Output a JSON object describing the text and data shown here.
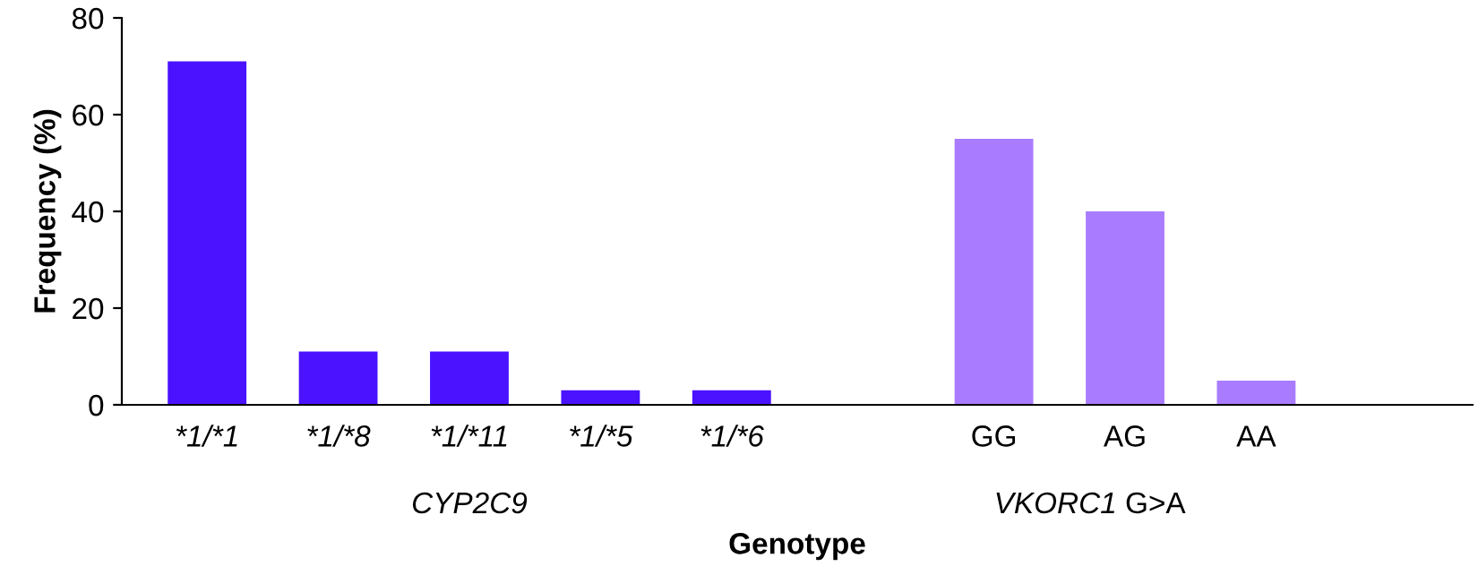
{
  "chart_data": {
    "type": "bar",
    "ylabel": "Frequency (%)",
    "xlabel": "Genotype",
    "categories": [
      "*1/*1",
      "*1/*8",
      "*1/*11",
      "*1/*5",
      "*1/*6",
      null,
      "GG",
      "AG",
      "AA",
      null
    ],
    "values": [
      71,
      11,
      11,
      3,
      3,
      null,
      55,
      40,
      5,
      null
    ],
    "colors": [
      "#4a12ff",
      "#4a12ff",
      "#4a12ff",
      "#4a12ff",
      "#4a12ff",
      "#4a12ff",
      "#a97cff",
      "#a97cff",
      "#a97cff",
      "#a97cff"
    ],
    "ylim": [
      0,
      80
    ],
    "yticks": [
      0,
      20,
      40,
      60,
      80
    ],
    "grid": false,
    "legend": false,
    "annotations": [
      "CYP2C9",
      "VKORC1 G>A"
    ]
  }
}
